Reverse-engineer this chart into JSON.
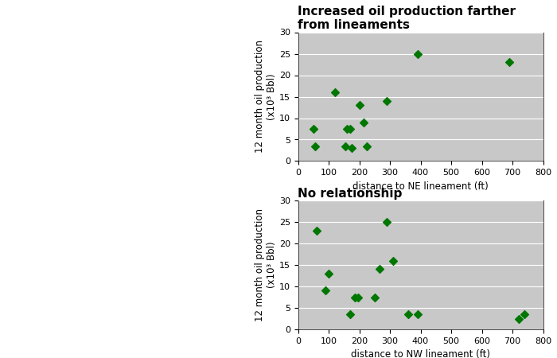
{
  "ne_x": [
    50,
    55,
    120,
    155,
    160,
    170,
    175,
    200,
    215,
    225,
    290,
    390,
    690
  ],
  "ne_y": [
    7.5,
    3.5,
    16,
    3.5,
    7.5,
    7.5,
    3.0,
    13,
    9,
    3.5,
    14,
    25,
    23
  ],
  "nw_x": [
    60,
    90,
    100,
    170,
    185,
    195,
    250,
    265,
    290,
    310,
    360,
    390,
    720,
    740
  ],
  "nw_y": [
    23,
    9,
    13,
    3.5,
    7.5,
    7.5,
    7.5,
    14,
    25,
    16,
    3.5,
    3.5,
    2.5,
    3.5
  ],
  "title_ne": "Increased oil production farther\nfrom lineaments",
  "title_nw": "No relationship",
  "xlabel_ne": "distance to NE lineament (ft)",
  "xlabel_nw": "distance to NW lineament (ft)",
  "ylabel": "12 month oil production\n(x10³ Bbl)",
  "xlim": [
    0,
    800
  ],
  "ylim": [
    0,
    30
  ],
  "xticks": [
    0,
    100,
    200,
    300,
    400,
    500,
    600,
    700,
    800
  ],
  "yticks": [
    0,
    5,
    10,
    15,
    20,
    25,
    30
  ],
  "bg_color": "#c8c8c8",
  "marker_color": "#007700",
  "marker": "D",
  "marker_size": 5,
  "title_fontsize": 11,
  "label_fontsize": 8.5,
  "tick_fontsize": 8
}
